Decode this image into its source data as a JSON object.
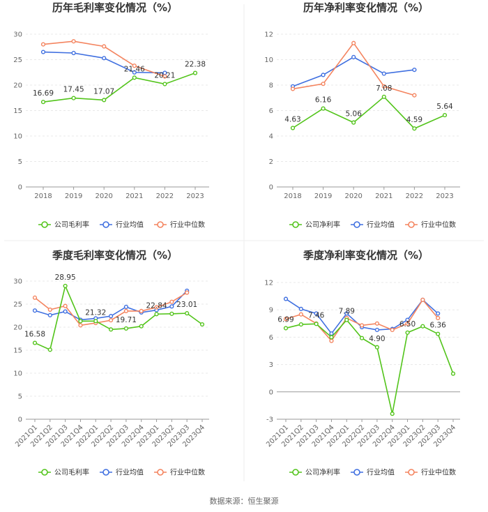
{
  "colors": {
    "company": "#52c41a",
    "avg": "#3f6fe0",
    "median": "#f4845f"
  },
  "source_label": "数据来源：恒生聚源",
  "chart_data": [
    {
      "type": "line",
      "title": "历年毛利率变化情况（%）",
      "categories": [
        "2018",
        "2019",
        "2020",
        "2021",
        "2022",
        "2023"
      ],
      "ylim": [
        0,
        30
      ],
      "yticks": [
        "0",
        "5",
        "10",
        "15",
        "20",
        "25",
        "30"
      ],
      "rotate_x": false,
      "legend": [
        "公司毛利率",
        "行业均值",
        "行业中位数"
      ],
      "series": [
        {
          "name": "公司毛利率",
          "key": "company",
          "values": [
            16.69,
            17.45,
            17.07,
            21.46,
            20.21,
            22.38
          ],
          "labels": [
            "16.69",
            "17.45",
            "17.07",
            "21.46",
            "20.21",
            "22.38"
          ]
        },
        {
          "name": "行业均值",
          "key": "avg",
          "values": [
            26.5,
            26.3,
            25.3,
            22.5,
            22.4,
            null
          ],
          "labels": [
            null,
            null,
            null,
            null,
            null,
            null
          ]
        },
        {
          "name": "行业中位数",
          "key": "median",
          "values": [
            28.0,
            28.6,
            27.6,
            23.8,
            21.7,
            null
          ],
          "labels": [
            null,
            null,
            null,
            null,
            null,
            null
          ]
        }
      ]
    },
    {
      "type": "line",
      "title": "历年净利率变化情况（%）",
      "categories": [
        "2018",
        "2019",
        "2020",
        "2021",
        "2022",
        "2023"
      ],
      "ylim": [
        0,
        12
      ],
      "yticks": [
        "0",
        "2",
        "4",
        "6",
        "8",
        "10",
        "12"
      ],
      "rotate_x": false,
      "legend": [
        "公司净利率",
        "行业均值",
        "行业中位数"
      ],
      "series": [
        {
          "name": "公司净利率",
          "key": "company",
          "values": [
            4.63,
            6.16,
            5.06,
            7.08,
            4.59,
            5.64
          ],
          "labels": [
            "4.63",
            "6.16",
            "5.06",
            "7.08",
            "4.59",
            "5.64"
          ]
        },
        {
          "name": "行业均值",
          "key": "avg",
          "values": [
            7.9,
            8.8,
            10.2,
            8.9,
            9.2,
            null
          ],
          "labels": [
            null,
            null,
            null,
            null,
            null,
            null
          ]
        },
        {
          "name": "行业中位数",
          "key": "median",
          "values": [
            7.7,
            8.1,
            11.3,
            7.9,
            7.2,
            null
          ],
          "labels": [
            null,
            null,
            null,
            null,
            null,
            null
          ]
        }
      ]
    },
    {
      "type": "line",
      "title": "季度毛利率变化情况（%）",
      "categories": [
        "2021Q1",
        "2021Q2",
        "2021Q3",
        "2021Q4",
        "2022Q1",
        "2022Q2",
        "2022Q3",
        "2022Q4",
        "2023Q1",
        "2023Q2",
        "2023Q3",
        "2023Q4"
      ],
      "ylim": [
        0,
        30
      ],
      "yticks": [
        "0",
        "5",
        "10",
        "15",
        "20",
        "25",
        "30"
      ],
      "rotate_x": true,
      "legend": [
        "公司毛利率",
        "行业均值",
        "行业中位数"
      ],
      "series": [
        {
          "name": "公司毛利率",
          "key": "company",
          "values": [
            16.58,
            15.1,
            28.95,
            21.3,
            21.32,
            19.5,
            19.71,
            20.2,
            22.84,
            22.9,
            23.01,
            20.6
          ],
          "labels": [
            "16.58",
            null,
            "28.95",
            null,
            "21.32",
            null,
            "19.71",
            null,
            "22.84",
            null,
            "23.01",
            null
          ]
        },
        {
          "name": "行业均值",
          "key": "avg",
          "values": [
            23.6,
            22.6,
            23.4,
            21.6,
            21.9,
            22.4,
            24.4,
            23.2,
            23.7,
            24.5,
            27.9,
            null
          ],
          "labels": [
            null,
            null,
            null,
            null,
            null,
            null,
            null,
            null,
            null,
            null,
            null,
            null
          ]
        },
        {
          "name": "行业中位数",
          "key": "median",
          "values": [
            26.4,
            23.8,
            24.6,
            20.4,
            20.9,
            21.5,
            23.5,
            23.5,
            24.3,
            25.5,
            27.5,
            null
          ],
          "labels": [
            null,
            null,
            null,
            null,
            null,
            null,
            null,
            null,
            null,
            null,
            null,
            null
          ]
        }
      ]
    },
    {
      "type": "line",
      "title": "季度净利率变化情况（%）",
      "categories": [
        "2021Q1",
        "2021Q2",
        "2021Q3",
        "2021Q4",
        "2022Q1",
        "2022Q2",
        "2022Q3",
        "2022Q4",
        "2023Q1",
        "2023Q2",
        "2023Q3",
        "2023Q4"
      ],
      "ylim": [
        -3,
        12
      ],
      "yticks": [
        "-3",
        "0",
        "3",
        "6",
        "9",
        "12"
      ],
      "rotate_x": true,
      "legend": [
        "公司净利率",
        "行业均值",
        "行业中位数"
      ],
      "series": [
        {
          "name": "公司净利率",
          "key": "company",
          "values": [
            6.99,
            7.4,
            7.46,
            6.0,
            7.89,
            5.9,
            4.9,
            -2.4,
            6.5,
            7.2,
            6.36,
            2.0
          ],
          "labels": [
            "6.99",
            null,
            "7.46",
            null,
            "7.89",
            null,
            "4.90",
            null,
            "6.50",
            null,
            "6.36",
            null
          ]
        },
        {
          "name": "行业均值",
          "key": "avg",
          "values": [
            10.2,
            9.1,
            8.6,
            6.4,
            8.6,
            7.1,
            6.8,
            6.9,
            7.9,
            10.1,
            8.6,
            null
          ],
          "labels": [
            null,
            null,
            null,
            null,
            null,
            null,
            null,
            null,
            null,
            null,
            null,
            null
          ]
        },
        {
          "name": "行业中位数",
          "key": "median",
          "values": [
            8.0,
            8.5,
            7.5,
            5.6,
            8.1,
            7.3,
            7.5,
            6.8,
            7.5,
            10.1,
            8.1,
            null
          ],
          "labels": [
            null,
            null,
            null,
            null,
            null,
            null,
            null,
            null,
            null,
            null,
            null,
            null
          ]
        }
      ]
    }
  ]
}
